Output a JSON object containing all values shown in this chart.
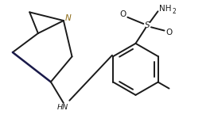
{
  "bg_color": "#ffffff",
  "line_color": "#1a1a1a",
  "lw": 1.4,
  "N_color": "#8B6914",
  "figsize": [
    2.69,
    1.64
  ],
  "dpi": 100,
  "xlim": [
    0,
    10
  ],
  "ylim": [
    0,
    6.1
  ]
}
